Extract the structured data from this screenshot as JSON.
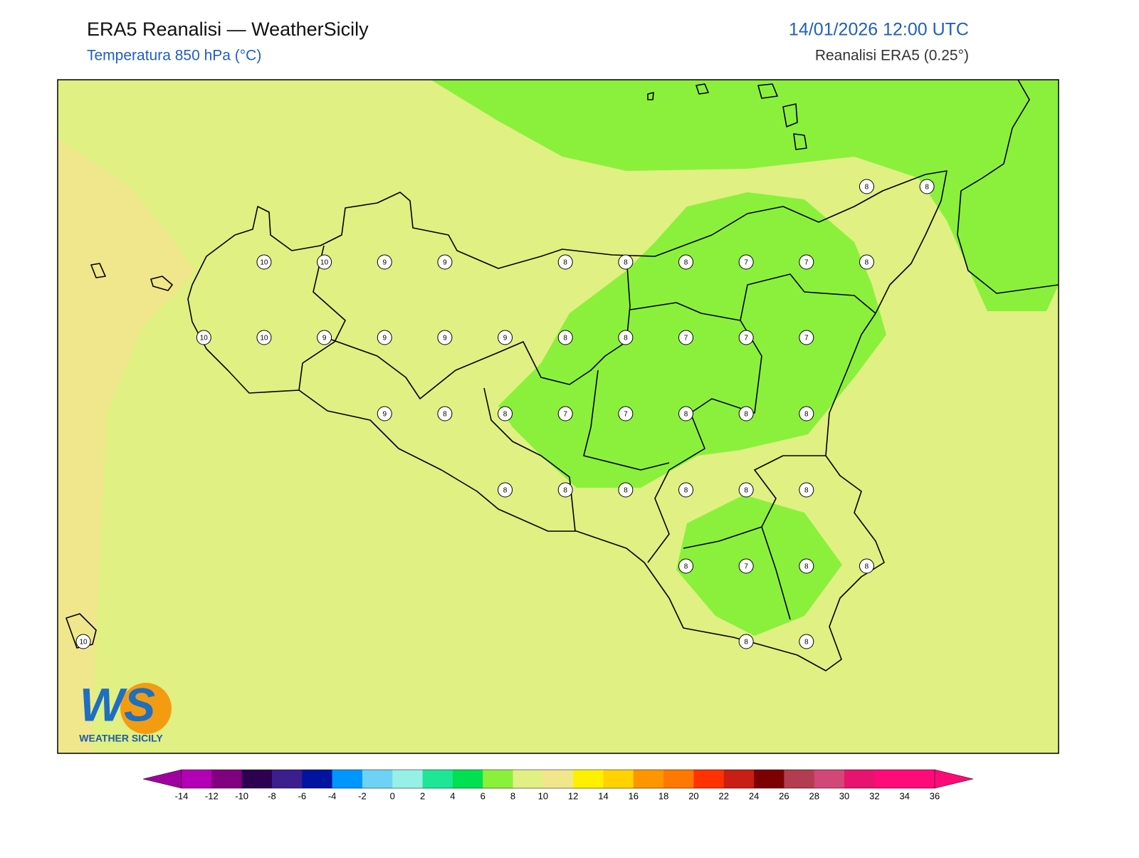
{
  "header": {
    "title": "ERA5 Reanalisi — WeatherSicily",
    "subtitle": "Temperatura 850 hPa (°C)",
    "datetime": "14/01/2026 12:00 UTC",
    "source": "Reanalisi ERA5 (0.25°)"
  },
  "map": {
    "fill_colors": {
      "base": "#e0f082",
      "warm": "#f0e68c",
      "cool": "#8bf03c"
    },
    "points": [
      8,
      8,
      10,
      10,
      9,
      9,
      8,
      8,
      8,
      7,
      7,
      8,
      10,
      10,
      9,
      9,
      9,
      9,
      8,
      8,
      7,
      7,
      7,
      9,
      8,
      8,
      7,
      7,
      8,
      8,
      8,
      8,
      8,
      8,
      8,
      8,
      8,
      8,
      7,
      8,
      8,
      10,
      8,
      8
    ]
  },
  "colorbar": {
    "ticks": [
      -14,
      -12,
      -10,
      -8,
      -6,
      -4,
      -2,
      0,
      2,
      4,
      6,
      8,
      10,
      12,
      14,
      16,
      18,
      20,
      22,
      24,
      26,
      28,
      30,
      32,
      34,
      36
    ],
    "colors": [
      "#b400b4",
      "#800080",
      "#2d0050",
      "#3c1e8c",
      "#0014a0",
      "#0096ff",
      "#6ed2f5",
      "#96f0e6",
      "#1ee696",
      "#00e050",
      "#8bf03c",
      "#e0f082",
      "#f0e68c",
      "#fff000",
      "#ffd200",
      "#ff9600",
      "#ff7800",
      "#ff3200",
      "#c81e14",
      "#7d0000",
      "#b43c50",
      "#d24678",
      "#e6146e",
      "#ff0a78",
      "#ff0a78"
    ],
    "under": "#a000a0",
    "over": "#ff0a78"
  },
  "logo": {
    "mark": "WS",
    "text": "WEATHER SICILY"
  }
}
